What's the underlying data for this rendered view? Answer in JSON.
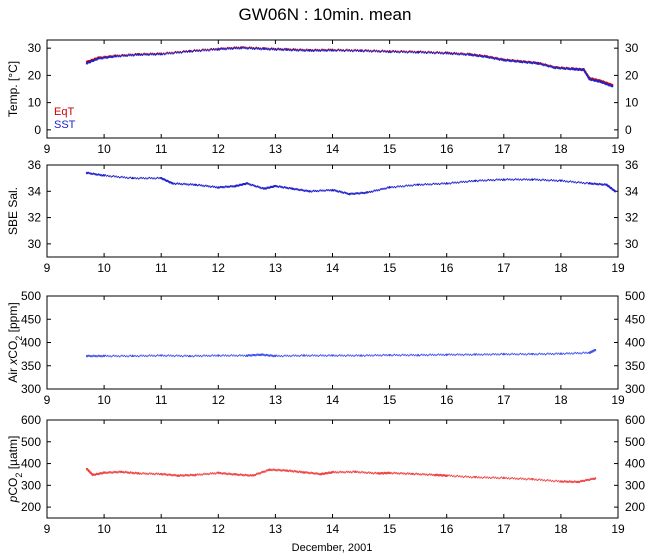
{
  "title": "GW06N : 10min. mean",
  "xlabel": "December, 2001",
  "colors": {
    "eqt": "#cc0000",
    "sst": "#2222cc",
    "air": "#4455ee",
    "pco2": "#ee4444"
  },
  "chart_data": [
    {
      "type": "scatter",
      "ylabel": "Temp. [°C]",
      "xlim": [
        9,
        19
      ],
      "ylim": [
        -3,
        33
      ],
      "xticks": [
        9,
        10,
        11,
        12,
        13,
        14,
        15,
        16,
        17,
        18,
        19
      ],
      "yticks": [
        0,
        10,
        20,
        30
      ],
      "legend_position": "bottom-left",
      "series": [
        {
          "name": "EqT",
          "color": "#cc0000",
          "x": [
            9.7,
            9.9,
            10.2,
            10.6,
            11.0,
            11.5,
            12.0,
            12.4,
            12.8,
            13.2,
            13.6,
            14.0,
            14.5,
            15.0,
            15.5,
            16.0,
            16.4,
            16.7,
            17.0,
            17.3,
            17.6,
            17.9,
            18.2,
            18.4,
            18.5,
            18.7,
            18.9
          ],
          "y": [
            25.0,
            26.5,
            27.2,
            27.8,
            28.0,
            29.0,
            29.8,
            30.3,
            29.9,
            29.6,
            29.3,
            29.4,
            29.2,
            28.9,
            28.7,
            28.3,
            27.8,
            27.0,
            25.8,
            25.2,
            24.6,
            23.0,
            22.5,
            22.2,
            19.0,
            18.0,
            16.5
          ]
        },
        {
          "name": "SST",
          "color": "#2222cc",
          "x": [
            9.7,
            9.9,
            10.2,
            10.6,
            11.0,
            11.5,
            12.0,
            12.4,
            12.8,
            13.2,
            13.6,
            14.0,
            14.5,
            15.0,
            15.5,
            16.0,
            16.4,
            16.7,
            17.0,
            17.3,
            17.6,
            17.9,
            18.2,
            18.4,
            18.5,
            18.7,
            18.9
          ],
          "y": [
            24.5,
            26.2,
            27.0,
            27.6,
            27.8,
            28.8,
            29.6,
            30.1,
            29.7,
            29.4,
            29.1,
            29.2,
            29.0,
            28.7,
            28.5,
            28.1,
            27.6,
            26.8,
            25.6,
            25.0,
            24.4,
            22.8,
            22.3,
            22.0,
            18.6,
            17.6,
            16.0
          ]
        }
      ]
    },
    {
      "type": "scatter",
      "ylabel": "SBE Sal.",
      "xlim": [
        9,
        19
      ],
      "ylim": [
        29,
        36
      ],
      "xticks": [
        9,
        10,
        11,
        12,
        13,
        14,
        15,
        16,
        17,
        18,
        19
      ],
      "yticks": [
        30,
        32,
        34,
        36
      ],
      "series": [
        {
          "name": "",
          "color": "#2222cc",
          "x": [
            9.7,
            10.0,
            10.5,
            11.0,
            11.2,
            11.6,
            12.0,
            12.3,
            12.5,
            12.8,
            13.0,
            13.3,
            13.6,
            14.0,
            14.3,
            14.6,
            15.0,
            15.5,
            16.0,
            16.5,
            17.0,
            17.5,
            18.0,
            18.5,
            18.8,
            18.95
          ],
          "y": [
            35.4,
            35.2,
            35.0,
            35.0,
            34.6,
            34.5,
            34.3,
            34.4,
            34.6,
            34.2,
            34.4,
            34.2,
            34.0,
            34.1,
            33.8,
            33.9,
            34.3,
            34.5,
            34.6,
            34.8,
            34.9,
            34.9,
            34.8,
            34.6,
            34.5,
            34.0
          ]
        }
      ]
    },
    {
      "type": "scatter",
      "ylabel": "Air xCO2 [ppm]",
      "xlim": [
        9,
        19
      ],
      "ylim": [
        300,
        500
      ],
      "xticks": [
        9,
        10,
        11,
        12,
        13,
        14,
        15,
        16,
        17,
        18,
        19
      ],
      "yticks": [
        300,
        350,
        400,
        450,
        500
      ],
      "series": [
        {
          "name": "",
          "color": "#4455ee",
          "x": [
            9.7,
            10.0,
            10.5,
            11.0,
            11.5,
            12.0,
            12.5,
            12.75,
            13.0,
            13.5,
            14.0,
            14.5,
            15.0,
            15.5,
            16.0,
            16.5,
            17.0,
            17.5,
            18.0,
            18.5,
            18.6
          ],
          "y": [
            371,
            371,
            371,
            372,
            371,
            372,
            372,
            374,
            371,
            372,
            372,
            372,
            373,
            373,
            374,
            374,
            375,
            375,
            376,
            378,
            384
          ]
        }
      ]
    },
    {
      "type": "scatter",
      "ylabel": "pCO2 [µatm]",
      "xlim": [
        9,
        19
      ],
      "ylim": [
        150,
        600
      ],
      "xticks": [
        9,
        10,
        11,
        12,
        13,
        14,
        15,
        16,
        17,
        18,
        19
      ],
      "yticks": [
        200,
        300,
        400,
        500,
        600
      ],
      "series": [
        {
          "name": "",
          "color": "#ee4444",
          "x": [
            9.7,
            9.8,
            10.0,
            10.3,
            10.6,
            11.0,
            11.3,
            11.6,
            12.0,
            12.3,
            12.6,
            12.9,
            13.2,
            13.5,
            13.8,
            14.0,
            14.4,
            14.8,
            15.0,
            15.4,
            15.8,
            16.0,
            16.5,
            17.0,
            17.5,
            18.0,
            18.3,
            18.6
          ],
          "y": [
            375,
            348,
            358,
            362,
            355,
            352,
            345,
            348,
            357,
            350,
            345,
            372,
            368,
            360,
            352,
            360,
            362,
            355,
            357,
            353,
            348,
            345,
            337,
            334,
            328,
            318,
            316,
            332
          ]
        }
      ]
    }
  ]
}
